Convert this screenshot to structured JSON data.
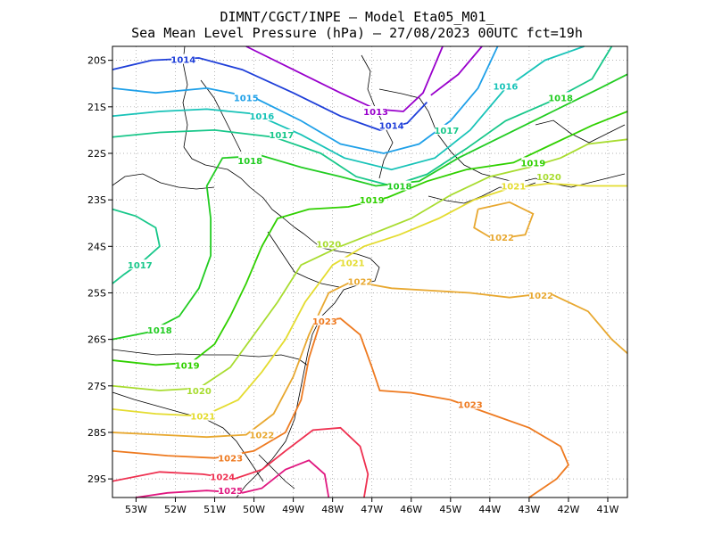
{
  "title_line1": "DIMNT/CGCT/INPE —  Model Eta05_M01_",
  "title_line2": "Sea Mean Level Pressure (hPa) — 27/08/2023 00UTC fct=19h",
  "chart_data": {
    "type": "contour",
    "x_ticks": [
      "53W",
      "52W",
      "51W",
      "50W",
      "49W",
      "48W",
      "47W",
      "46W",
      "45W",
      "44W",
      "43W",
      "42W",
      "41W"
    ],
    "y_ticks": [
      "20S",
      "21S",
      "22S",
      "23S",
      "24S",
      "25S",
      "26S",
      "27S",
      "28S",
      "29S"
    ],
    "xlim": [
      -53.6,
      -40.5
    ],
    "ylim": [
      -29.4,
      -19.7
    ],
    "grid": true,
    "levels": [
      {
        "value": "1013",
        "color": "#9900cc"
      },
      {
        "value": "1014",
        "color": "#1f3fd9"
      },
      {
        "value": "1015",
        "color": "#1fa0e8"
      },
      {
        "value": "1016",
        "color": "#18c3b8"
      },
      {
        "value": "1017",
        "color": "#18c78a"
      },
      {
        "value": "1018",
        "color": "#22cc22"
      },
      {
        "value": "1019",
        "color": "#30d000"
      },
      {
        "value": "1020",
        "color": "#a8dc30"
      },
      {
        "value": "1021",
        "color": "#e4dc30"
      },
      {
        "value": "1022",
        "color": "#e8a830"
      },
      {
        "value": "1023",
        "color": "#ee7a20"
      },
      {
        "value": "1024",
        "color": "#ee3050"
      },
      {
        "value": "1025",
        "color": "#e01880"
      }
    ],
    "contour_labels": [
      {
        "text": "1014",
        "level": "1014",
        "lon": -51.8,
        "lat": -19.98
      },
      {
        "text": "1015",
        "level": "1015",
        "lon": -50.2,
        "lat": -20.8
      },
      {
        "text": "1016",
        "level": "1016",
        "lon": -49.8,
        "lat": -21.2
      },
      {
        "text": "1017",
        "level": "1017",
        "lon": -49.3,
        "lat": -21.6
      },
      {
        "text": "1013",
        "level": "1013",
        "lon": -46.9,
        "lat": -21.1
      },
      {
        "text": "1014",
        "level": "1014",
        "lon": -46.5,
        "lat": -21.4
      },
      {
        "text": "1016",
        "level": "1016",
        "lon": -43.6,
        "lat": -20.55
      },
      {
        "text": "1018",
        "level": "1018",
        "lon": -42.2,
        "lat": -20.8
      },
      {
        "text": "1017",
        "level": "1017",
        "lon": -45.1,
        "lat": -21.5
      },
      {
        "text": "1019",
        "level": "1019",
        "lon": -42.9,
        "lat": -22.2
      },
      {
        "text": "1020",
        "level": "1020",
        "lon": -42.5,
        "lat": -22.5
      },
      {
        "text": "1021",
        "level": "1021",
        "lon": -43.4,
        "lat": -22.7
      },
      {
        "text": "1018",
        "level": "1018",
        "lon": -50.1,
        "lat": -22.15
      },
      {
        "text": "1018",
        "level": "1018",
        "lon": -46.3,
        "lat": -22.7
      },
      {
        "text": "1019",
        "level": "1019",
        "lon": -47.0,
        "lat": -23.0
      },
      {
        "text": "1022",
        "level": "1022",
        "lon": -43.7,
        "lat": -23.8
      },
      {
        "text": "1017",
        "level": "1017",
        "lon": -52.9,
        "lat": -24.4
      },
      {
        "text": "1020",
        "level": "1020",
        "lon": -48.1,
        "lat": -23.95
      },
      {
        "text": "1021",
        "level": "1021",
        "lon": -47.5,
        "lat": -24.35
      },
      {
        "text": "1022",
        "level": "1022",
        "lon": -47.3,
        "lat": -24.75
      },
      {
        "text": "1022",
        "level": "1022",
        "lon": -42.7,
        "lat": -25.05
      },
      {
        "text": "1023",
        "level": "1023",
        "lon": -48.2,
        "lat": -25.6
      },
      {
        "text": "1018",
        "level": "1018",
        "lon": -52.4,
        "lat": -25.8
      },
      {
        "text": "1019",
        "level": "1019",
        "lon": -51.7,
        "lat": -26.55
      },
      {
        "text": "1020",
        "level": "1020",
        "lon": -51.4,
        "lat": -27.1
      },
      {
        "text": "1021",
        "level": "1021",
        "lon": -51.3,
        "lat": -27.65
      },
      {
        "text": "1023",
        "level": "1023",
        "lon": -44.5,
        "lat": -27.4
      },
      {
        "text": "1022",
        "level": "1022",
        "lon": -49.8,
        "lat": -28.05
      },
      {
        "text": "1023",
        "level": "1023",
        "lon": -50.6,
        "lat": -28.55
      },
      {
        "text": "1024",
        "level": "1024",
        "lon": -50.8,
        "lat": -28.95
      },
      {
        "text": "1025",
        "level": "1025",
        "lon": -50.6,
        "lat": -29.25
      }
    ]
  }
}
